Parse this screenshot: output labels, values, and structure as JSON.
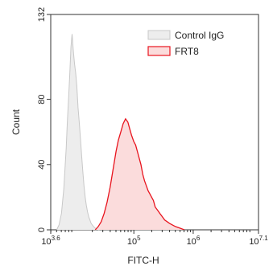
{
  "chart_data": {
    "type": "area",
    "xlabel": "FITC-H",
    "ylabel": "Count",
    "x_scale": "log10",
    "xlim": [
      3.6,
      7.1
    ],
    "ylim": [
      0,
      132
    ],
    "x_ticks": [
      {
        "value": 3.6,
        "base": "10",
        "exp": "3.6"
      },
      {
        "value": 5,
        "base": "10",
        "exp": "5"
      },
      {
        "value": 6,
        "base": "10",
        "exp": "6"
      },
      {
        "value": 7.1,
        "base": "10",
        "exp": "7.1"
      }
    ],
    "y_ticks": [
      {
        "value": 0,
        "label": "0"
      },
      {
        "value": 40,
        "label": "40"
      },
      {
        "value": 80,
        "label": "80"
      },
      {
        "value": 132,
        "label": "132"
      }
    ],
    "legend_position": "top-right",
    "series": [
      {
        "name": "Control IgG",
        "stroke": "#c8c8c8",
        "fill": "#ededed",
        "x": [
          3.7,
          3.74,
          3.78,
          3.82,
          3.86,
          3.88,
          3.9,
          3.92,
          3.94,
          3.96,
          3.98,
          4.0,
          4.02,
          4.04,
          4.06,
          4.08,
          4.1,
          4.12,
          4.14,
          4.16,
          4.18,
          4.2,
          4.22,
          4.24,
          4.26,
          4.28,
          4.3,
          4.32,
          4.35,
          4.38,
          4.42
        ],
        "y": [
          0,
          3,
          10,
          25,
          50,
          66,
          80,
          95,
          112,
          120,
          110,
          102,
          96,
          88,
          75,
          66,
          56,
          46,
          36,
          27,
          20,
          15,
          11,
          8,
          6,
          4,
          3,
          2,
          1,
          0.5,
          0
        ]
      },
      {
        "name": "FRT8",
        "stroke": "#e8141e",
        "fill": "#fbdcdc",
        "x": [
          4.35,
          4.4,
          4.45,
          4.5,
          4.55,
          4.6,
          4.65,
          4.7,
          4.74,
          4.78,
          4.82,
          4.86,
          4.9,
          4.93,
          4.96,
          5.0,
          5.03,
          5.06,
          5.09,
          5.12,
          5.15,
          5.18,
          5.21,
          5.24,
          5.27,
          5.3,
          5.33,
          5.36,
          5.4,
          5.44,
          5.48,
          5.52,
          5.56,
          5.6,
          5.65,
          5.7,
          5.78,
          5.85
        ],
        "y": [
          0,
          2,
          5,
          10,
          17,
          26,
          37,
          48,
          55,
          60,
          65,
          68,
          66,
          62,
          58,
          54,
          52,
          48,
          44,
          40,
          34,
          30,
          27,
          24,
          22,
          20,
          18,
          14,
          12,
          10,
          8,
          6,
          5,
          4,
          3,
          2,
          1,
          0
        ]
      }
    ]
  }
}
